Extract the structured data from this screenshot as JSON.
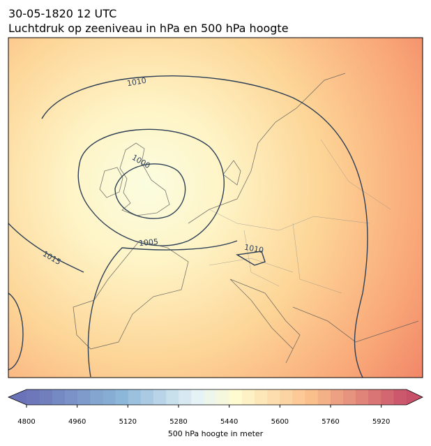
{
  "header": {
    "title": "30-05-1820 12 UTC",
    "subtitle": "Luchtdruk op zeeniveau in hPa en 500 hPa hoogte"
  },
  "map": {
    "contour_labels": [
      "1010",
      "1000",
      "1005",
      "1010",
      "1015"
    ]
  },
  "colorbar": {
    "lim": [
      4800,
      6000
    ],
    "step": 40,
    "ticks": [
      4800,
      4960,
      5120,
      5280,
      5440,
      5600,
      5760,
      5920
    ],
    "label": "500 hPa hoogte in meter"
  }
}
